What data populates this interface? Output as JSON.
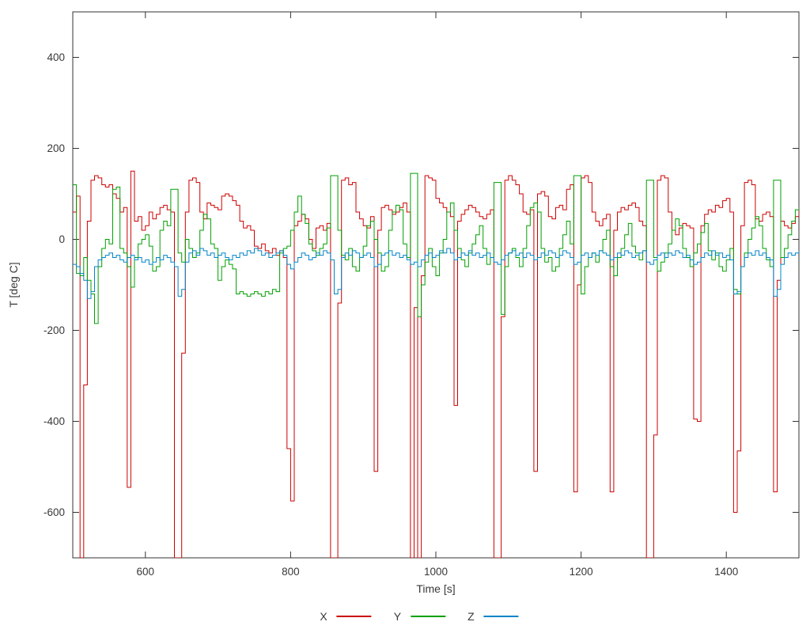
{
  "chart_data": {
    "type": "line",
    "title": "",
    "xlabel": "Time [s]",
    "ylabel": "T [deg C]",
    "xlim": [
      500,
      1500
    ],
    "ylim": [
      -700,
      500
    ],
    "xticks": [
      600,
      800,
      1000,
      1200,
      1400
    ],
    "yticks": [
      -600,
      -400,
      -200,
      0,
      200,
      400
    ],
    "grid": false,
    "line_style": "steps",
    "legend_position": "bottom-center",
    "x": {
      "start": 500,
      "step": 5,
      "count": 201
    },
    "series": [
      {
        "name": "X",
        "color": "#cc0000",
        "values": [
          60,
          95,
          -700,
          -320,
          40,
          130,
          140,
          135,
          120,
          115,
          120,
          100,
          90,
          60,
          70,
          -545,
          150,
          40,
          50,
          20,
          30,
          60,
          45,
          55,
          70,
          75,
          65,
          60,
          -700,
          -700,
          -250,
          60,
          130,
          135,
          125,
          60,
          45,
          80,
          75,
          70,
          65,
          95,
          100,
          95,
          85,
          75,
          40,
          25,
          30,
          20,
          -15,
          -20,
          -10,
          -25,
          -30,
          -20,
          -35,
          -25,
          -40,
          -460,
          -575,
          30,
          40,
          55,
          45,
          0,
          -20,
          25,
          30,
          20,
          35,
          -700,
          -700,
          -140,
          130,
          135,
          120,
          125,
          60,
          45,
          30,
          25,
          50,
          -510,
          20,
          70,
          75,
          65,
          55,
          60,
          70,
          80,
          60,
          -700,
          -150,
          -700,
          -80,
          140,
          135,
          130,
          90,
          80,
          70,
          60,
          50,
          -365,
          40,
          55,
          65,
          75,
          70,
          60,
          50,
          45,
          55,
          65,
          -700,
          -700,
          -170,
          130,
          140,
          130,
          120,
          100,
          60,
          55,
          65,
          -510,
          100,
          105,
          95,
          50,
          45,
          70,
          75,
          65,
          110,
          120,
          -555,
          -100,
          135,
          140,
          125,
          60,
          40,
          30,
          45,
          55,
          -555,
          20,
          60,
          70,
          65,
          75,
          80,
          70,
          40,
          30,
          -700,
          -700,
          -430,
          130,
          140,
          135,
          60,
          20,
          10,
          25,
          35,
          30,
          25,
          -395,
          -400,
          30,
          55,
          65,
          60,
          75,
          70,
          85,
          90,
          60,
          -600,
          -465,
          30,
          125,
          130,
          120,
          45,
          40,
          55,
          60,
          50,
          -555,
          -90,
          40,
          30,
          25,
          35,
          50,
          65
        ]
      },
      {
        "name": "Y",
        "color": "#00a000",
        "values": [
          120,
          -75,
          -80,
          -40,
          -90,
          -120,
          -185,
          -60,
          -20,
          0,
          -10,
          110,
          115,
          -20,
          -30,
          -60,
          -105,
          -40,
          -10,
          0,
          10,
          -15,
          -70,
          -60,
          20,
          40,
          30,
          110,
          110,
          -30,
          -50,
          0,
          -20,
          -40,
          -30,
          20,
          55,
          45,
          -10,
          -20,
          -90,
          -60,
          -45,
          -55,
          -65,
          -120,
          -115,
          -120,
          -125,
          -120,
          -115,
          -120,
          -125,
          -115,
          -120,
          -110,
          -115,
          -30,
          -20,
          -15,
          20,
          60,
          95,
          55,
          35,
          -10,
          -25,
          -35,
          -20,
          -10,
          25,
          140,
          140,
          20,
          -35,
          -45,
          -20,
          -60,
          -70,
          -40,
          -15,
          30,
          40,
          0,
          -30,
          -70,
          -60,
          20,
          60,
          75,
          65,
          -10,
          -40,
          145,
          145,
          -170,
          -100,
          -50,
          -20,
          -60,
          -80,
          -30,
          0,
          60,
          80,
          20,
          -20,
          -45,
          -60,
          -30,
          -10,
          10,
          30,
          -20,
          -55,
          -40,
          125,
          125,
          -165,
          -60,
          -30,
          -20,
          -40,
          -60,
          -20,
          30,
          70,
          80,
          60,
          -20,
          -50,
          -40,
          -70,
          -60,
          -20,
          10,
          40,
          -10,
          140,
          140,
          -120,
          -60,
          -40,
          -30,
          -50,
          -25,
          0,
          20,
          -60,
          -80,
          -40,
          -20,
          10,
          35,
          -15,
          -30,
          -45,
          -25,
          130,
          130,
          -40,
          -70,
          -50,
          -30,
          -10,
          20,
          45,
          30,
          -20,
          -40,
          -60,
          -30,
          -10,
          15,
          35,
          -25,
          -45,
          -30,
          -60,
          -70,
          -45,
          -20,
          -110,
          -120,
          -60,
          -30,
          0,
          25,
          50,
          30,
          -20,
          -45,
          -60,
          130,
          130,
          -40,
          -20,
          10,
          40,
          65,
          70
        ]
      },
      {
        "name": "Z",
        "color": "#0084c8",
        "values": [
          -55,
          -60,
          -75,
          -90,
          -130,
          -115,
          -60,
          -45,
          -40,
          -35,
          -30,
          -40,
          -35,
          -45,
          -50,
          -40,
          -35,
          -45,
          -40,
          -50,
          -45,
          -55,
          -50,
          -40,
          -45,
          -35,
          -40,
          -50,
          -60,
          -125,
          -110,
          -50,
          -30,
          -25,
          -35,
          -20,
          -25,
          -35,
          -30,
          -40,
          -35,
          -30,
          -40,
          -45,
          -35,
          -40,
          -30,
          -35,
          -25,
          -30,
          -20,
          -25,
          -35,
          -30,
          -40,
          -35,
          -30,
          -25,
          -35,
          -55,
          -65,
          -50,
          -40,
          -30,
          -35,
          -45,
          -40,
          -30,
          -35,
          -25,
          -30,
          -45,
          -120,
          -110,
          -40,
          -30,
          -35,
          -25,
          -30,
          -40,
          -35,
          -30,
          -40,
          -60,
          -55,
          -35,
          -30,
          -25,
          -35,
          -30,
          -40,
          -35,
          -45,
          -55,
          -50,
          -60,
          -45,
          -35,
          -30,
          -40,
          -35,
          -25,
          -30,
          -20,
          -30,
          -45,
          -40,
          -30,
          -35,
          -25,
          -35,
          -30,
          -40,
          -35,
          -30,
          -40,
          -50,
          -55,
          -45,
          -35,
          -30,
          -25,
          -35,
          -30,
          -40,
          -30,
          -35,
          -45,
          -40,
          -30,
          -35,
          -25,
          -30,
          -40,
          -35,
          -25,
          -30,
          -40,
          -55,
          -50,
          -35,
          -30,
          -40,
          -30,
          -35,
          -25,
          -30,
          -35,
          -45,
          -40,
          -30,
          -35,
          -25,
          -30,
          -40,
          -35,
          -30,
          -25,
          -50,
          -55,
          -45,
          -35,
          -30,
          -40,
          -30,
          -35,
          -25,
          -30,
          -40,
          -35,
          -45,
          -55,
          -50,
          -40,
          -30,
          -35,
          -25,
          -35,
          -30,
          -40,
          -35,
          -45,
          -120,
          -115,
          -60,
          -40,
          -30,
          -35,
          -25,
          -35,
          -30,
          -40,
          -45,
          -125,
          -110,
          -55,
          -40,
          -30,
          -35,
          -30,
          -25
        ]
      }
    ]
  }
}
